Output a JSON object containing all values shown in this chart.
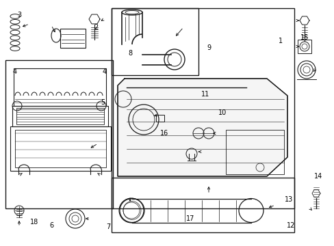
{
  "bg": "#ffffff",
  "lc": "#1a1a1a",
  "figsize": [
    4.89,
    3.6
  ],
  "dpi": 100,
  "label_fs": 7.0,
  "border_lw": 1.0,
  "part_lw": 0.8
}
